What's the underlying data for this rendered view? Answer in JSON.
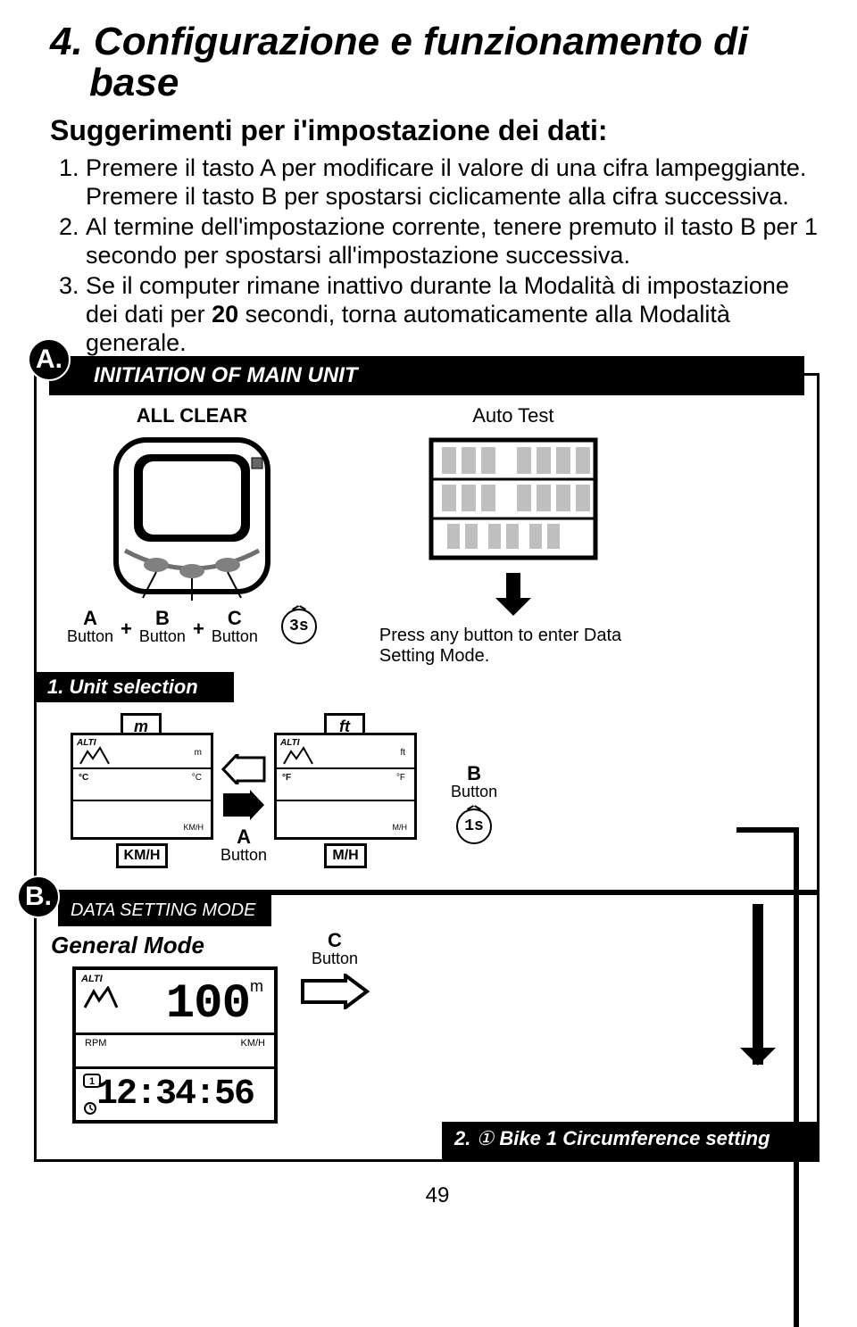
{
  "title": "4. Configurazione e funzionamento di base",
  "subtitle": "Suggerimenti per i'impostazione dei dati:",
  "tips": [
    "Premere il tasto A per modificare il valore di una cifra lampeggiante. Premere il tasto B per spostarsi ciclicamente alla cifra successiva.",
    "Al termine dell'impostazione corrente, tenere premuto il tasto B per 1 secondo per spostarsi all'impostazione successiva.",
    "Se il computer rimane inattivo durante la Modalità di impostazione dei dati per 20 secondi, torna automaticamente alla Modalità generale."
  ],
  "bold_number": "20",
  "sectionA": {
    "badge": "A.",
    "header": "INITIATION OF MAIN UNIT",
    "all_clear": "ALL CLEAR",
    "auto_test": "Auto Test",
    "buttons": {
      "a": "A",
      "b": "B",
      "c": "C",
      "button_word": "Button"
    },
    "timer3s": "3s",
    "press_text": "Press any button to enter Data Setting Mode.",
    "sub1": {
      "num": "1.",
      "label": "Unit selection"
    },
    "unit_m": "m",
    "unit_ft": "ft",
    "celsius": "°C",
    "fahrenheit": "°F",
    "kmh": "KM/H",
    "mh": "M/H",
    "a_button": "A",
    "b_button": "B",
    "timer1s": "1s",
    "alti": "ALTI"
  },
  "sectionB": {
    "badge": "B.",
    "data_setting": "DATA SETTING MODE",
    "general_mode": "General Mode",
    "c_button": "C",
    "button_word": "Button",
    "display_top": "100",
    "display_unit": "m",
    "display_bottom": "12:34:56",
    "rpm": "RPM",
    "kmh": "KM/H",
    "alti": "ALTI",
    "bike": {
      "num": "2.",
      "icon": "①",
      "text": "Bike 1  Circumference setting"
    }
  },
  "page_number": "49"
}
